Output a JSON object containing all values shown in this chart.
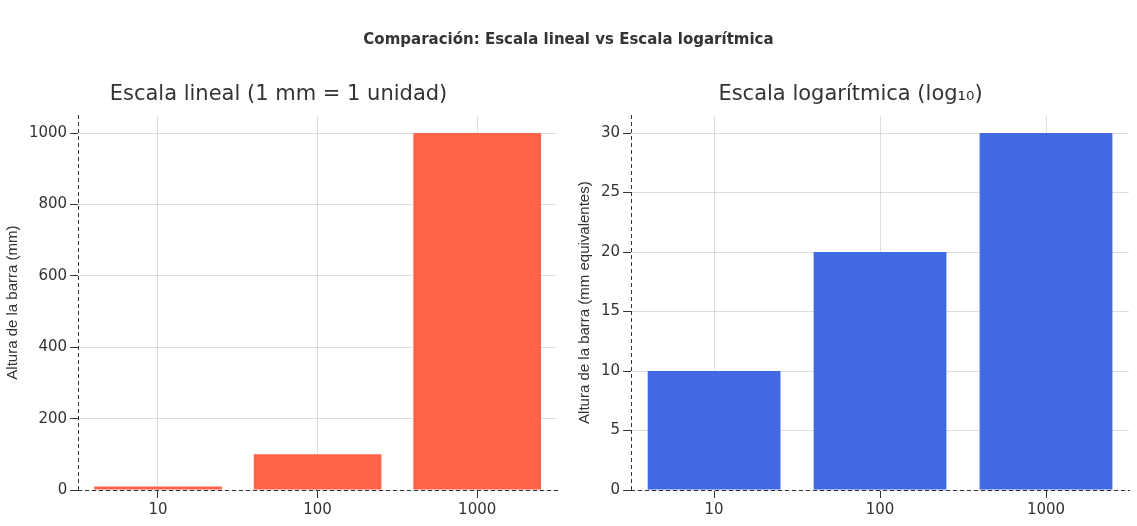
{
  "chart_data": [
    {
      "type": "other",
      "title": "Comparación: Escala lineal vs Escala logarítmica"
    },
    {
      "type": "bar",
      "title": "Escala lineal (1 mm = 1 unidad)",
      "ylabel": "Altura de la barra (mm)",
      "categories": [
        "10",
        "100",
        "1000"
      ],
      "values": [
        10,
        100,
        1000
      ],
      "color": "#ff6347",
      "ylim": [
        0,
        1050
      ],
      "yticks": [
        0,
        200,
        400,
        600,
        800,
        1000
      ],
      "grid": true
    },
    {
      "type": "bar",
      "title": "Escala logarítmica (log₁₀)",
      "ylabel": "Altura de la barra (mm equivalentes)",
      "categories": [
        "10",
        "100",
        "1000"
      ],
      "values": [
        10,
        20,
        30
      ],
      "color": "#4169e1",
      "ylim": [
        0,
        31.5
      ],
      "yticks": [
        0,
        5,
        10,
        15,
        20,
        25,
        30
      ],
      "grid": true
    }
  ]
}
